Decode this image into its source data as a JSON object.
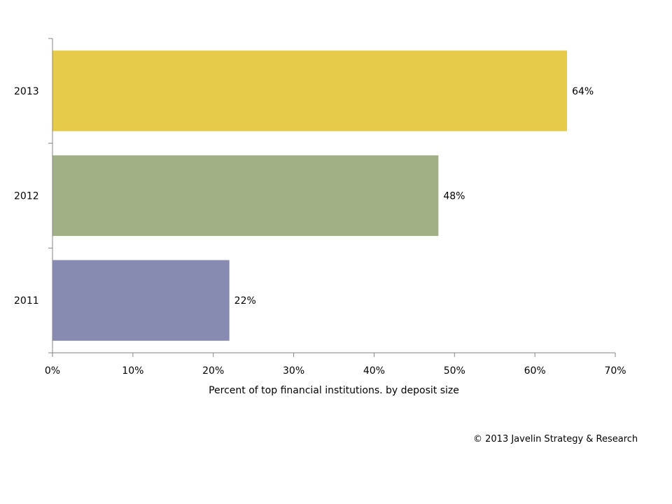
{
  "chart_data": {
    "type": "bar",
    "orientation": "horizontal",
    "categories": [
      "2013",
      "2012",
      "2011"
    ],
    "values": [
      64,
      48,
      22
    ],
    "data_labels": [
      "64%",
      "48%",
      "22%"
    ],
    "colors": [
      "#E6CB4A",
      "#A1B185",
      "#878BB1"
    ],
    "title": "",
    "xlabel": "Percent of top financial institutions. by deposit size",
    "ylabel": "",
    "xlim": [
      0,
      70
    ],
    "xticks": [
      0,
      10,
      20,
      30,
      40,
      50,
      60,
      70
    ],
    "xtick_labels": [
      "0%",
      "10%",
      "20%",
      "30%",
      "40%",
      "50%",
      "60%",
      "70%"
    ],
    "grid": false
  },
  "footer": {
    "copyright": "© 2013 Javelin Strategy & Research"
  }
}
